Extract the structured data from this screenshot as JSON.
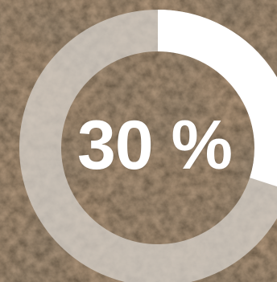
{
  "progress": {
    "percent_label": "30 %",
    "value": 0.3
  },
  "colors": {
    "track": "#d9d6d0",
    "fill": "#ffffff",
    "text": "#ffffff",
    "background_base": "#6b5a45"
  },
  "icons": {
    "background": "stone-texture-image"
  }
}
